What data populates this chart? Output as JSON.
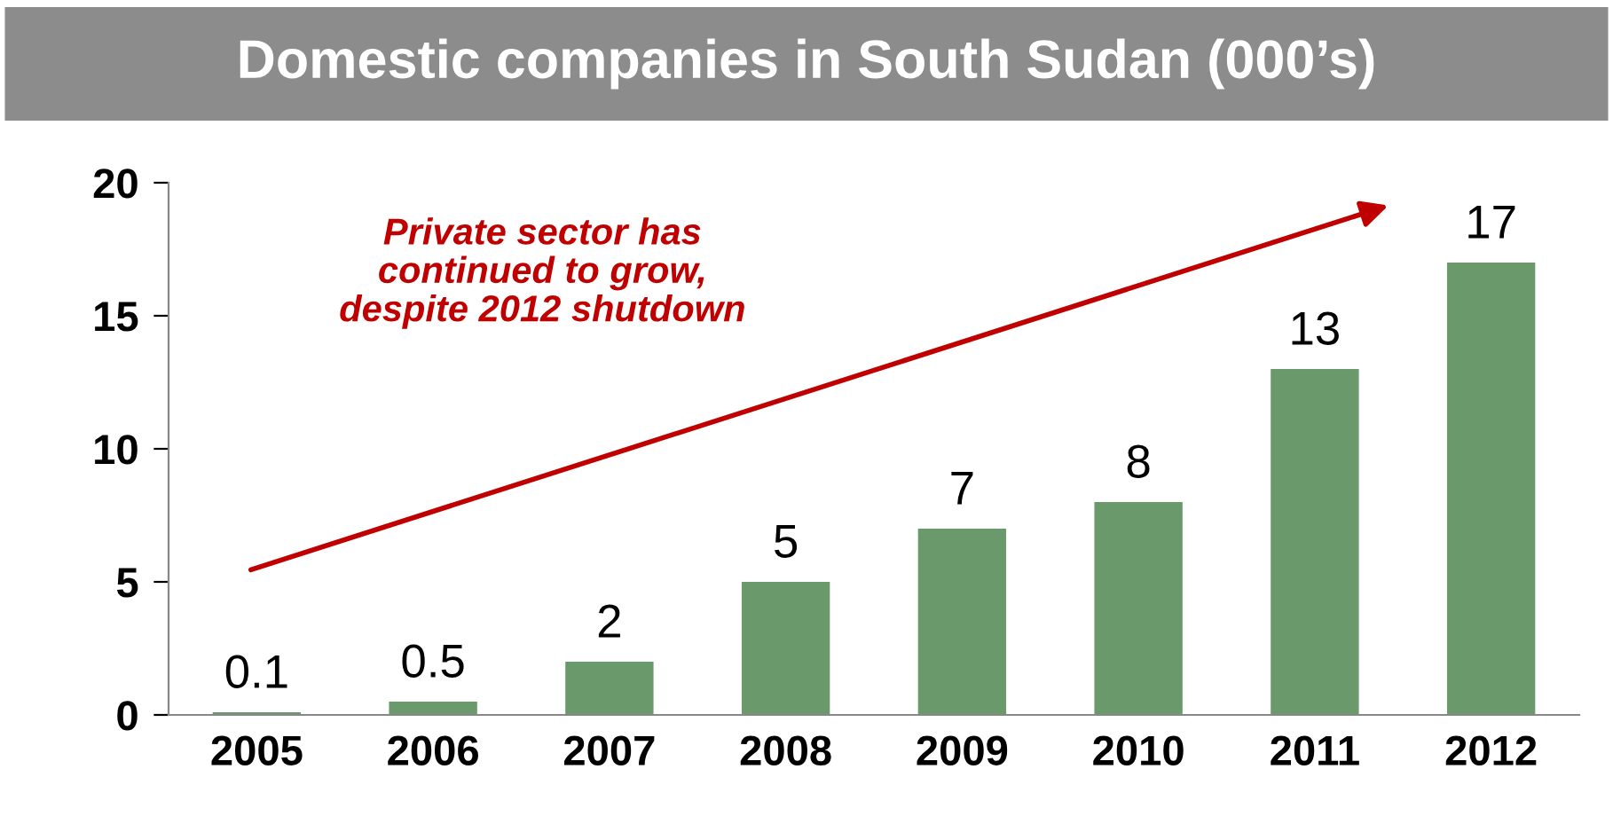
{
  "chart_data": {
    "type": "bar",
    "title": "Domestic companies in South Sudan (000’s)",
    "categories": [
      "2005",
      "2006",
      "2007",
      "2008",
      "2009",
      "2010",
      "2011",
      "2012"
    ],
    "values": [
      0.1,
      0.5,
      2,
      5,
      7,
      8,
      13,
      17
    ],
    "color": "#6a9a6b",
    "ylim": [
      0,
      20
    ],
    "yticks": [
      0,
      5,
      10,
      15,
      20
    ],
    "grid": false,
    "data_labels": true,
    "annotations": [
      "Private sector has\ncontinued to grow,\ndespite 2012 shutdown"
    ]
  }
}
